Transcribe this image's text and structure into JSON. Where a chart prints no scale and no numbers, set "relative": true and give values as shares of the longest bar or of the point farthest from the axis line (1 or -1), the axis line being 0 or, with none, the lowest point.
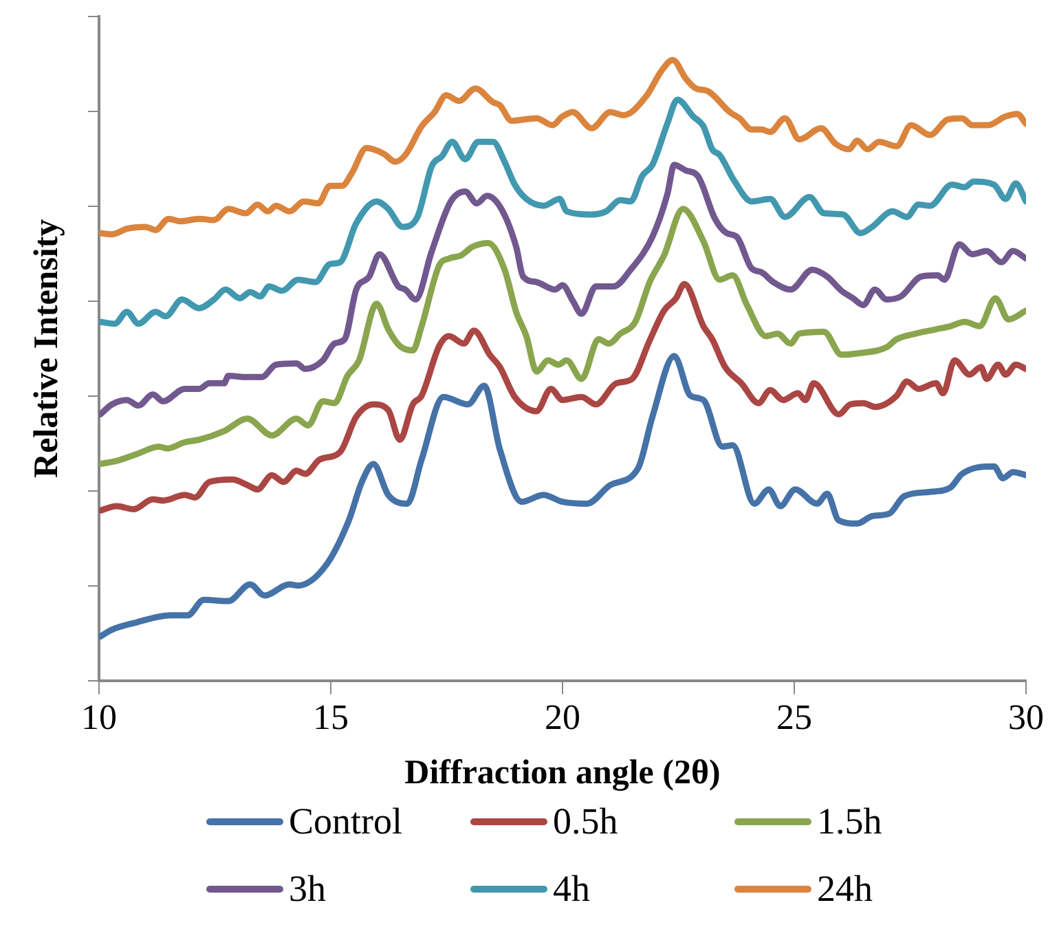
{
  "chart_data": {
    "type": "line",
    "xlabel": "Diffraction angle (2θ)",
    "ylabel": "Relative Intensity",
    "relative": true,
    "xlim": [
      10,
      30
    ],
    "xticks": [
      10,
      15,
      20,
      25,
      30
    ],
    "legend": "bottom",
    "series": [
      {
        "name": "Control",
        "color": "#4572a7",
        "x": [
          10.03,
          10.28,
          10.82,
          11.54,
          11.91,
          12.26,
          12.79,
          13.26,
          13.57,
          14.11,
          14.29,
          14.89,
          15.39,
          15.67,
          15.92,
          16.24,
          16.65,
          16.96,
          17.43,
          17.96,
          18.31,
          18.65,
          19.12,
          19.59,
          20.0,
          20.53,
          21.03,
          21.63,
          21.94,
          22.41,
          22.76,
          23.04,
          23.45,
          23.67,
          24.14,
          24.45,
          24.7,
          25.02,
          25.49,
          25.71,
          25.96,
          26.36,
          26.68,
          27.05,
          27.37,
          27.93,
          28.37,
          28.62,
          29.31,
          29.5,
          29.72,
          30.0
        ],
        "values": [
          0.071,
          0.082,
          0.094,
          0.105,
          0.105,
          0.13,
          0.128,
          0.155,
          0.137,
          0.155,
          0.153,
          0.185,
          0.258,
          0.32,
          0.349,
          0.299,
          0.285,
          0.356,
          0.457,
          0.445,
          0.475,
          0.372,
          0.288,
          0.299,
          0.288,
          0.285,
          0.315,
          0.342,
          0.425,
          0.523,
          0.459,
          0.452,
          0.377,
          0.379,
          0.285,
          0.308,
          0.281,
          0.308,
          0.285,
          0.301,
          0.258,
          0.253,
          0.265,
          0.269,
          0.297,
          0.304,
          0.311,
          0.333,
          0.345,
          0.326,
          0.336,
          0.331
        ]
      },
      {
        "name": "0.5h",
        "color": "#aa4643",
        "x": [
          10.03,
          10.38,
          10.75,
          11.16,
          11.38,
          11.85,
          12.07,
          12.38,
          12.88,
          13.2,
          13.42,
          13.73,
          13.98,
          14.26,
          14.45,
          14.76,
          15.2,
          15.55,
          15.92,
          16.24,
          16.49,
          16.77,
          16.96,
          17.34,
          17.55,
          17.87,
          18.09,
          18.43,
          18.65,
          18.97,
          19.44,
          19.75,
          20.0,
          20.41,
          20.72,
          21.16,
          21.5,
          21.88,
          22.19,
          22.45,
          22.63,
          23.04,
          23.23,
          23.51,
          23.86,
          24.23,
          24.48,
          24.76,
          25.08,
          25.24,
          25.42,
          25.96,
          26.21,
          26.49,
          26.74,
          27.21,
          27.43,
          27.68,
          28.06,
          28.21,
          28.46,
          28.78,
          29.03,
          29.15,
          29.4,
          29.56,
          29.78,
          30.0
        ],
        "values": [
          0.274,
          0.281,
          0.276,
          0.292,
          0.29,
          0.299,
          0.295,
          0.32,
          0.324,
          0.315,
          0.308,
          0.331,
          0.32,
          0.338,
          0.333,
          0.356,
          0.368,
          0.425,
          0.445,
          0.436,
          0.388,
          0.445,
          0.459,
          0.539,
          0.555,
          0.543,
          0.564,
          0.525,
          0.505,
          0.457,
          0.434,
          0.47,
          0.452,
          0.457,
          0.445,
          0.479,
          0.486,
          0.548,
          0.596,
          0.616,
          0.639,
          0.571,
          0.55,
          0.505,
          0.479,
          0.447,
          0.468,
          0.452,
          0.463,
          0.452,
          0.479,
          0.429,
          0.445,
          0.447,
          0.441,
          0.459,
          0.482,
          0.47,
          0.479,
          0.463,
          0.516,
          0.493,
          0.505,
          0.486,
          0.509,
          0.493,
          0.509,
          0.502
        ]
      },
      {
        "name": "1.5h",
        "color": "#89a54e",
        "x": [
          10.03,
          10.38,
          10.82,
          11.29,
          11.47,
          11.85,
          12.16,
          12.7,
          13.2,
          13.73,
          14.26,
          14.51,
          14.83,
          15.08,
          15.36,
          15.61,
          15.99,
          16.24,
          16.49,
          16.77,
          16.96,
          17.34,
          17.55,
          17.81,
          18.06,
          18.4,
          18.75,
          19.0,
          19.22,
          19.44,
          19.69,
          19.91,
          20.09,
          20.41,
          20.78,
          21.0,
          21.25,
          21.57,
          21.88,
          22.19,
          22.6,
          23.04,
          23.39,
          23.67,
          23.98,
          24.39,
          24.64,
          24.92,
          25.11,
          25.64,
          26.02,
          26.36,
          26.99,
          27.21,
          27.62,
          28.06,
          28.37,
          28.68,
          29.0,
          29.34,
          29.62,
          30.0
        ],
        "values": [
          0.349,
          0.354,
          0.365,
          0.377,
          0.374,
          0.384,
          0.388,
          0.402,
          0.422,
          0.395,
          0.422,
          0.411,
          0.45,
          0.447,
          0.491,
          0.516,
          0.607,
          0.566,
          0.539,
          0.532,
          0.571,
          0.669,
          0.68,
          0.685,
          0.699,
          0.705,
          0.662,
          0.594,
          0.555,
          0.498,
          0.516,
          0.509,
          0.516,
          0.486,
          0.55,
          0.543,
          0.559,
          0.578,
          0.642,
          0.685,
          0.76,
          0.708,
          0.646,
          0.653,
          0.605,
          0.555,
          0.559,
          0.543,
          0.559,
          0.562,
          0.525,
          0.527,
          0.537,
          0.55,
          0.559,
          0.566,
          0.571,
          0.578,
          0.571,
          0.616,
          0.582,
          0.596
        ]
      },
      {
        "name": "3h",
        "color": "#71588f",
        "x": [
          10.03,
          10.28,
          10.6,
          10.85,
          11.16,
          11.38,
          11.85,
          12.16,
          12.38,
          12.7,
          12.79,
          13.2,
          13.51,
          13.82,
          14.26,
          14.45,
          14.83,
          15.08,
          15.3,
          15.55,
          15.83,
          16.05,
          16.46,
          16.61,
          16.83,
          17.18,
          17.59,
          17.9,
          18.15,
          18.37,
          18.68,
          19.0,
          19.15,
          19.44,
          19.84,
          20.0,
          20.22,
          20.41,
          20.72,
          21.1,
          21.47,
          21.94,
          22.26,
          22.41,
          22.66,
          22.92,
          23.29,
          23.54,
          23.76,
          24.08,
          24.29,
          24.55,
          24.92,
          25.39,
          25.71,
          26.02,
          26.27,
          26.49,
          26.74,
          26.99,
          27.3,
          27.74,
          28.09,
          28.24,
          28.56,
          28.84,
          29.15,
          29.47,
          29.72,
          30.0
        ],
        "values": [
          0.429,
          0.445,
          0.452,
          0.443,
          0.461,
          0.45,
          0.47,
          0.47,
          0.479,
          0.479,
          0.491,
          0.489,
          0.489,
          0.509,
          0.511,
          0.502,
          0.516,
          0.543,
          0.55,
          0.63,
          0.651,
          0.687,
          0.635,
          0.63,
          0.614,
          0.692,
          0.772,
          0.788,
          0.769,
          0.781,
          0.76,
          0.699,
          0.651,
          0.642,
          0.63,
          0.637,
          0.612,
          0.591,
          0.635,
          0.635,
          0.662,
          0.715,
          0.783,
          0.831,
          0.822,
          0.813,
          0.744,
          0.721,
          0.715,
          0.664,
          0.658,
          0.642,
          0.63,
          0.662,
          0.651,
          0.628,
          0.616,
          0.605,
          0.63,
          0.614,
          0.619,
          0.651,
          0.653,
          0.646,
          0.703,
          0.687,
          0.692,
          0.674,
          0.692,
          0.68
        ]
      },
      {
        "name": "4h",
        "color": "#4198af",
        "x": [
          10.03,
          10.34,
          10.6,
          10.85,
          11.22,
          11.44,
          11.79,
          12.16,
          12.48,
          12.73,
          13.04,
          13.26,
          13.48,
          13.67,
          13.95,
          14.29,
          14.67,
          14.98,
          15.2,
          15.55,
          15.99,
          16.24,
          16.55,
          16.87,
          17.18,
          17.4,
          17.62,
          17.9,
          18.18,
          18.5,
          18.75,
          18.97,
          19.22,
          19.59,
          19.94,
          20.09,
          20.63,
          20.94,
          21.25,
          21.47,
          21.72,
          21.94,
          22.26,
          22.48,
          22.82,
          23.04,
          23.23,
          23.39,
          23.7,
          24.08,
          24.48,
          24.8,
          25.33,
          25.64,
          26.05,
          26.43,
          26.68,
          27.12,
          27.43,
          27.68,
          27.93,
          28.4,
          28.68,
          28.87,
          29.31,
          29.56,
          29.78,
          30.0
        ],
        "values": [
          0.578,
          0.575,
          0.594,
          0.575,
          0.594,
          0.587,
          0.614,
          0.6,
          0.614,
          0.63,
          0.616,
          0.626,
          0.619,
          0.635,
          0.628,
          0.646,
          0.642,
          0.671,
          0.674,
          0.737,
          0.772,
          0.76,
          0.731,
          0.747,
          0.829,
          0.845,
          0.868,
          0.84,
          0.868,
          0.868,
          0.836,
          0.799,
          0.776,
          0.765,
          0.776,
          0.756,
          0.751,
          0.756,
          0.774,
          0.772,
          0.813,
          0.831,
          0.897,
          0.936,
          0.909,
          0.893,
          0.856,
          0.847,
          0.806,
          0.772,
          0.776,
          0.747,
          0.779,
          0.753,
          0.751,
          0.721,
          0.731,
          0.756,
          0.747,
          0.767,
          0.765,
          0.799,
          0.795,
          0.804,
          0.799,
          0.776,
          0.801,
          0.772
        ]
      },
      {
        "name": "24h",
        "color": "#db843d",
        "x": [
          10.03,
          10.28,
          10.6,
          11.0,
          11.22,
          11.5,
          11.76,
          12.16,
          12.48,
          12.79,
          13.17,
          13.42,
          13.64,
          13.82,
          14.11,
          14.42,
          14.73,
          14.98,
          15.24,
          15.45,
          15.77,
          16.14,
          16.39,
          16.61,
          16.96,
          17.24,
          17.49,
          17.77,
          18.12,
          18.5,
          18.65,
          18.9,
          19.44,
          19.78,
          20.0,
          20.22,
          20.63,
          21.03,
          21.32,
          21.82,
          22.13,
          22.38,
          22.66,
          22.88,
          23.13,
          23.61,
          23.82,
          24.08,
          24.29,
          24.48,
          24.8,
          25.11,
          25.58,
          25.89,
          26.18,
          26.36,
          26.58,
          26.83,
          27.21,
          27.52,
          27.93,
          28.31,
          28.62,
          28.84,
          29.18,
          29.56,
          29.81,
          30.0
        ],
        "values": [
          0.721,
          0.719,
          0.728,
          0.731,
          0.726,
          0.744,
          0.74,
          0.744,
          0.742,
          0.76,
          0.753,
          0.767,
          0.756,
          0.765,
          0.756,
          0.772,
          0.769,
          0.797,
          0.797,
          0.817,
          0.858,
          0.849,
          0.836,
          0.847,
          0.893,
          0.916,
          0.943,
          0.934,
          0.954,
          0.932,
          0.927,
          0.902,
          0.906,
          0.895,
          0.909,
          0.916,
          0.89,
          0.916,
          0.911,
          0.943,
          0.982,
          1,
          0.97,
          0.954,
          0.95,
          0.916,
          0.906,
          0.888,
          0.888,
          0.884,
          0.906,
          0.872,
          0.89,
          0.865,
          0.856,
          0.87,
          0.856,
          0.868,
          0.861,
          0.895,
          0.879,
          0.904,
          0.906,
          0.895,
          0.895,
          0.909,
          0.913,
          0.897
        ]
      }
    ]
  }
}
